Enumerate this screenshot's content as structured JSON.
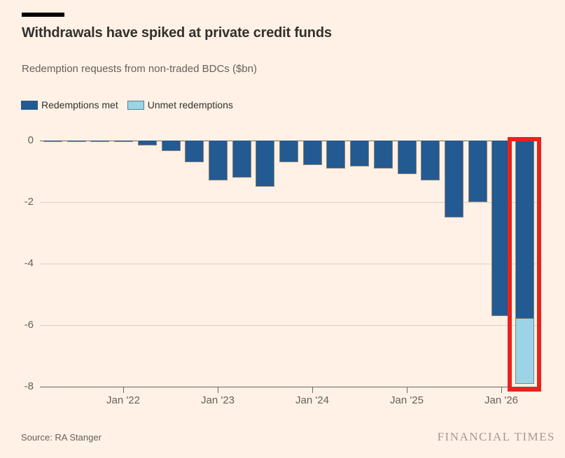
{
  "header": {
    "title": "Withdrawals have spiked at private credit funds",
    "subtitle": "Redemption requests from non-traded BDCs ($bn)"
  },
  "legend": [
    {
      "label": "Redemptions met",
      "color": "#235A91"
    },
    {
      "label": "Unmet redemptions",
      "color": "#9AD4E6"
    }
  ],
  "footer": {
    "source": "Source: RA Stanger",
    "brand": "FINANCIAL TIMES"
  },
  "colors": {
    "background": "#FFF1E5",
    "met_bar": "#235A91",
    "unmet_bar": "#9AD4E6",
    "highlight_box": "#E9221C",
    "axis_line": "#6F6861",
    "gridline": "#DDD0C4",
    "title_text": "#33302E",
    "muted_text": "#66605C",
    "brand_text": "#A79A8D"
  },
  "chart_data": {
    "type": "bar",
    "stacked": true,
    "title": "Withdrawals have spiked at private credit funds",
    "subtitle": "Redemption requests from non-traded BDCs ($bn)",
    "ylabel": "$bn",
    "ylim": [
      -8,
      0
    ],
    "grid": "horizontal",
    "legend_position": "top",
    "ytick_labels": [
      "0",
      "-2",
      "-4",
      "-6",
      "-8"
    ],
    "ytick_values": [
      0,
      -2,
      -4,
      -6,
      -8
    ],
    "xtick_labels": [
      "Jan '22",
      "Jan '23",
      "Jan '24",
      "Jan '25",
      "Jan '26"
    ],
    "xtick_category_index": [
      3,
      7,
      11,
      15,
      19
    ],
    "categories": [
      "2021 Q2",
      "2021 Q3",
      "2021 Q4",
      "2022 Q1",
      "2022 Q2",
      "2022 Q3",
      "2022 Q4",
      "2023 Q1",
      "2023 Q2",
      "2023 Q3",
      "2023 Q4",
      "2024 Q1",
      "2024 Q2",
      "2024 Q3",
      "2024 Q4",
      "2025 Q1",
      "2025 Q2",
      "2025 Q3",
      "2025 Q4",
      "2026 Q1",
      "2026 Q2"
    ],
    "series": [
      {
        "name": "Redemptions met",
        "color": "#235A91",
        "values": [
          -0.02,
          -0.02,
          -0.04,
          -0.04,
          -0.15,
          -0.35,
          -0.7,
          -1.3,
          -1.2,
          -1.5,
          -0.7,
          -0.8,
          -0.9,
          -0.85,
          -0.9,
          -1.1,
          -1.3,
          -2.5,
          -2.0,
          -5.7,
          -5.8
        ]
      },
      {
        "name": "Unmet redemptions",
        "color": "#9AD4E6",
        "values": [
          0,
          0,
          0,
          0,
          0,
          0,
          0,
          0,
          0,
          0,
          0,
          0,
          0,
          0,
          0,
          0,
          0,
          0,
          0,
          0,
          -2.1
        ]
      }
    ],
    "highlight": {
      "category_index": 20,
      "color": "#E9221C"
    }
  }
}
